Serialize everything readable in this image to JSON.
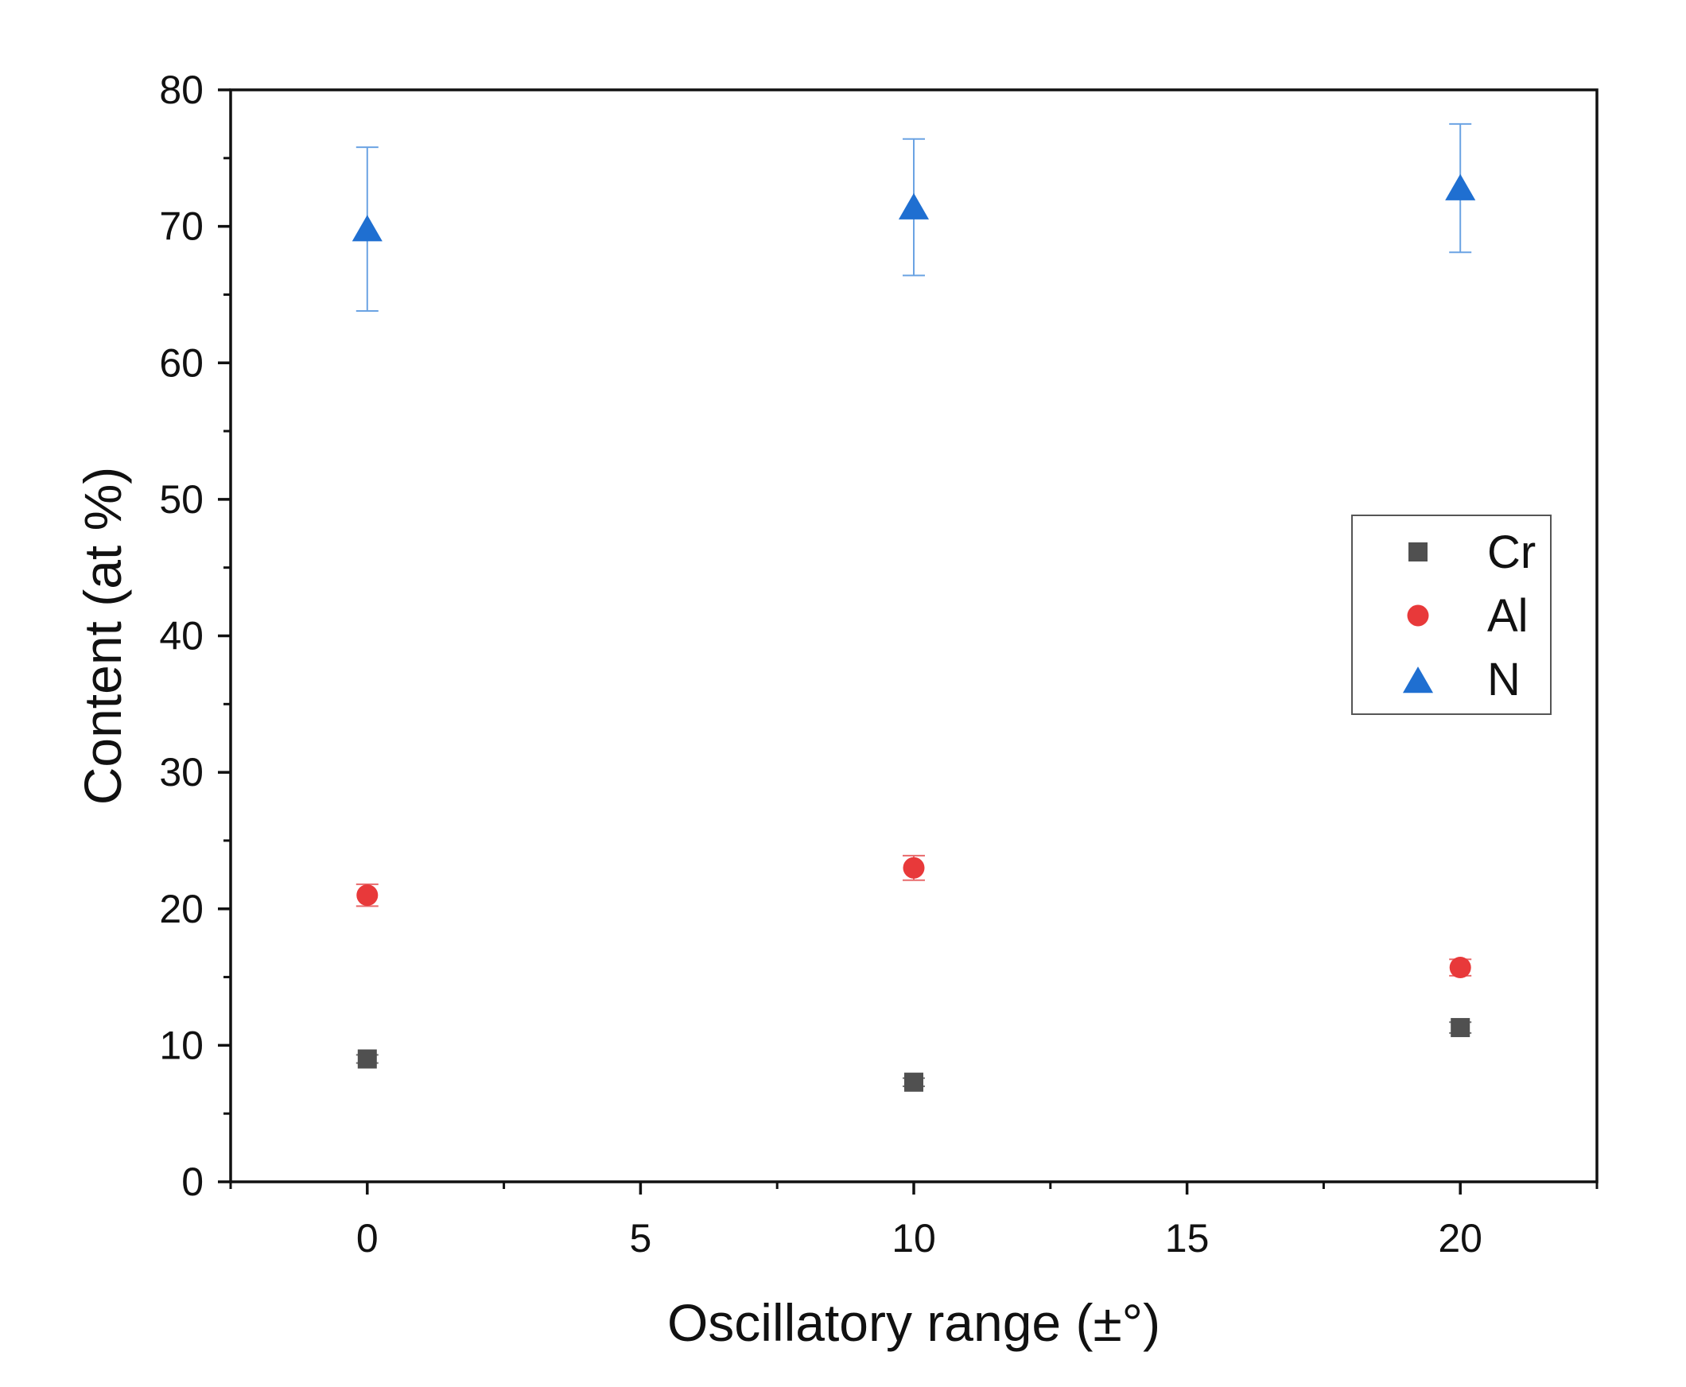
{
  "chart_data": {
    "type": "scatter",
    "title": "",
    "xlabel": "Oscillatory range (±°)",
    "ylabel": "Content (at %)",
    "xlim": [
      -2.5,
      22.5
    ],
    "ylim": [
      0,
      80
    ],
    "xticks": [
      0,
      5,
      10,
      15,
      20
    ],
    "yticks": [
      0,
      10,
      20,
      30,
      40,
      50,
      60,
      70,
      80
    ],
    "grid": false,
    "legend_position": "center-right",
    "x": [
      0,
      10,
      20
    ],
    "series": [
      {
        "name": "Cr",
        "marker": "square",
        "color": "#505050",
        "values": [
          9.0,
          7.3,
          11.3
        ],
        "errors": [
          0.3,
          0.3,
          0.4
        ]
      },
      {
        "name": "Al",
        "marker": "circle",
        "color": "#e8393a",
        "values": [
          21.0,
          23.0,
          15.7
        ],
        "errors": [
          0.8,
          0.9,
          0.6
        ]
      },
      {
        "name": "N",
        "marker": "triangle",
        "color": "#1f6fd1",
        "values": [
          69.8,
          71.4,
          72.8
        ],
        "errors": [
          6.0,
          5.0,
          4.7
        ]
      }
    ]
  }
}
